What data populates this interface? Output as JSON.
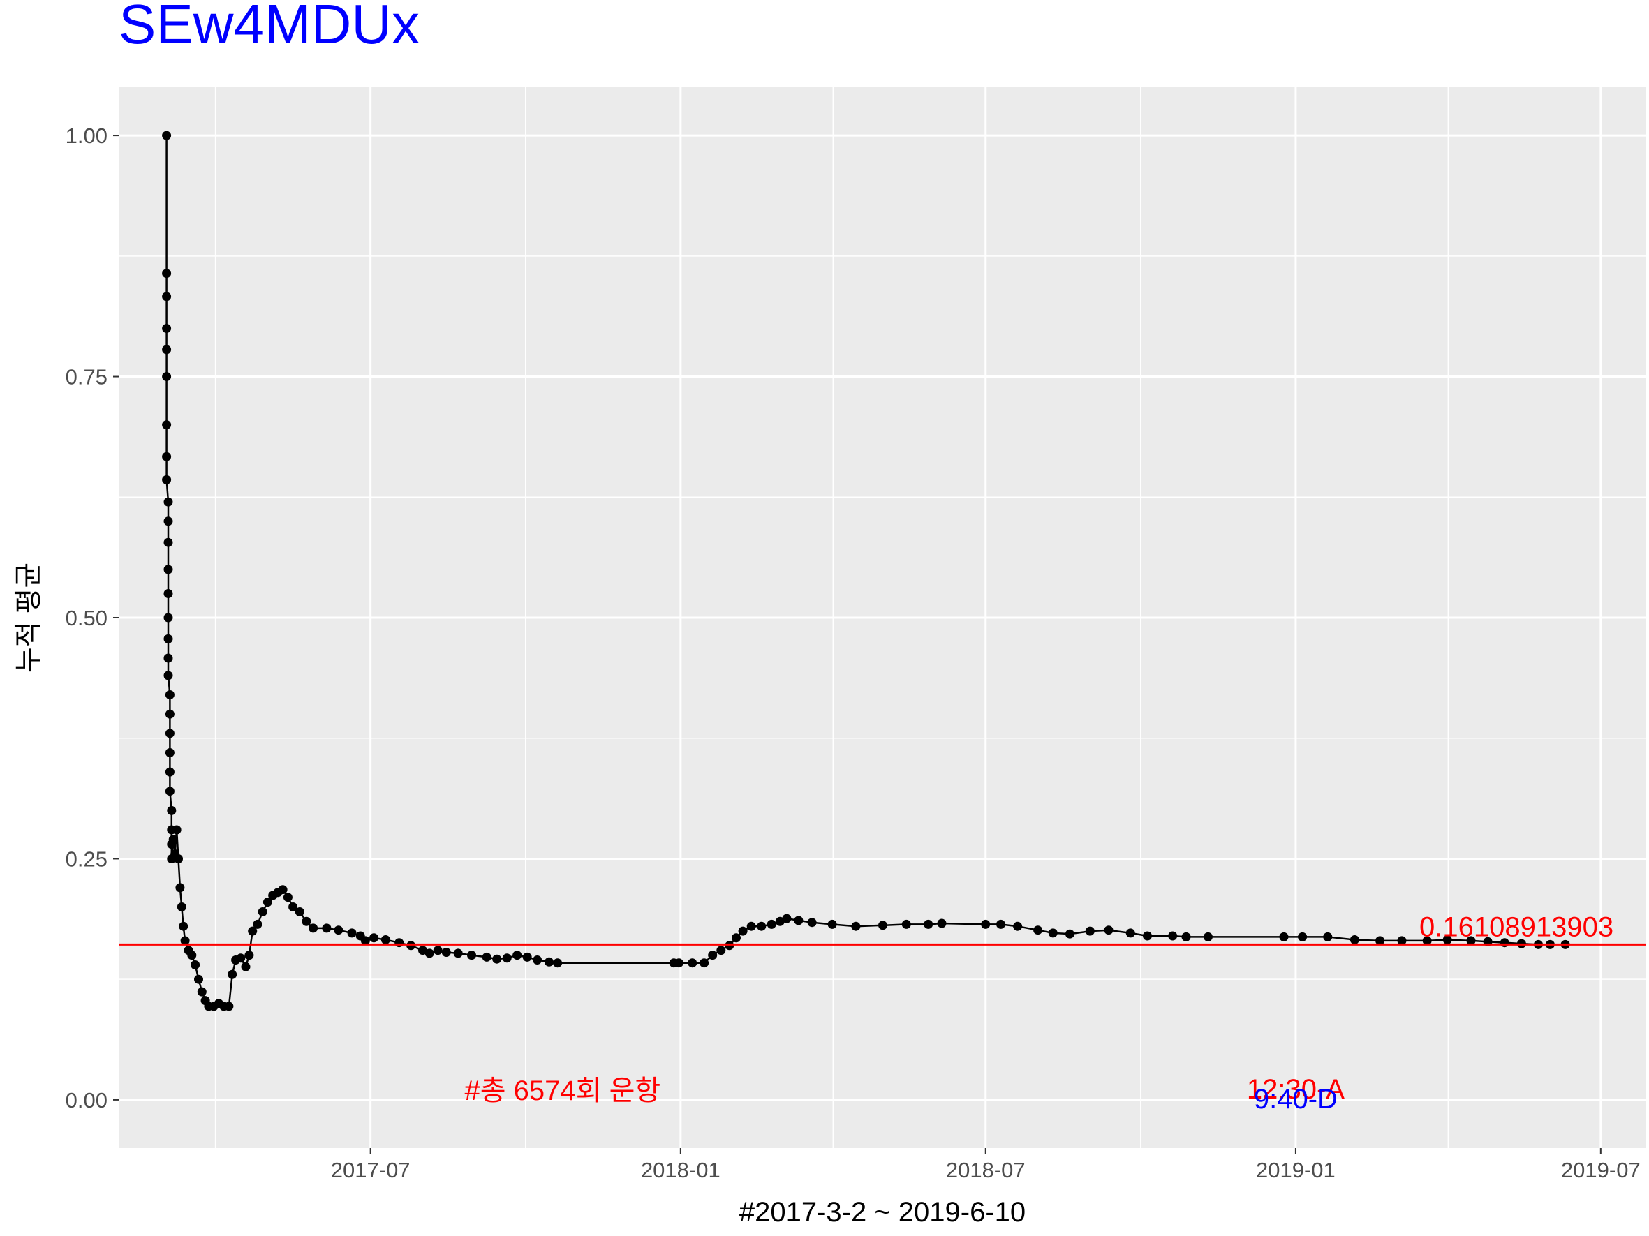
{
  "chart_data": {
    "type": "line",
    "title": "SEw4MDUx",
    "xlabel": "#2017-3-2 ~ 2019-6-10",
    "ylabel": "누적 평균",
    "x_range": [
      "2017-02-02",
      "2019-07-28"
    ],
    "ylim": [
      -0.05,
      1.05
    ],
    "y_ticks": [
      0.0,
      0.25,
      0.5,
      0.75,
      1.0
    ],
    "y_tick_labels": [
      "0.00",
      "0.25",
      "0.50",
      "0.75",
      "1.00"
    ],
    "x_ticks": [
      "2017-07-01",
      "2018-01-01",
      "2018-07-01",
      "2019-01-01",
      "2019-07-01"
    ],
    "x_tick_labels": [
      "2017-07",
      "2018-01",
      "2018-07",
      "2019-01",
      "2019-07"
    ],
    "grid": true,
    "colors": {
      "panel": "#ebebeb",
      "grid": "#ffffff",
      "series": "#000000",
      "reference": "#ff0000",
      "title": "#0000ff",
      "annotation_red": "#ff0000",
      "annotation_blue": "#0000ff"
    },
    "series": [
      {
        "points": [
          [
            "2017-03-02",
            1.0
          ],
          [
            "2017-03-02",
            0.857
          ],
          [
            "2017-03-02",
            0.833
          ],
          [
            "2017-03-02",
            0.8
          ],
          [
            "2017-03-02",
            0.778
          ],
          [
            "2017-03-02",
            0.75
          ],
          [
            "2017-03-02",
            0.7
          ],
          [
            "2017-03-02",
            0.667
          ],
          [
            "2017-03-02",
            0.643
          ],
          [
            "2017-03-03",
            0.62
          ],
          [
            "2017-03-03",
            0.6
          ],
          [
            "2017-03-03",
            0.578
          ],
          [
            "2017-03-03",
            0.55
          ],
          [
            "2017-03-03",
            0.525
          ],
          [
            "2017-03-03",
            0.5
          ],
          [
            "2017-03-03",
            0.478
          ],
          [
            "2017-03-03",
            0.458
          ],
          [
            "2017-03-03",
            0.44
          ],
          [
            "2017-03-04",
            0.42
          ],
          [
            "2017-03-04",
            0.4
          ],
          [
            "2017-03-04",
            0.38
          ],
          [
            "2017-03-04",
            0.36
          ],
          [
            "2017-03-04",
            0.34
          ],
          [
            "2017-03-04",
            0.32
          ],
          [
            "2017-03-05",
            0.3
          ],
          [
            "2017-03-05",
            0.28
          ],
          [
            "2017-03-05",
            0.265
          ],
          [
            "2017-03-05",
            0.25
          ],
          [
            "2017-03-06",
            0.27
          ],
          [
            "2017-03-07",
            0.255
          ],
          [
            "2017-03-08",
            0.28
          ],
          [
            "2017-03-09",
            0.25
          ],
          [
            "2017-03-10",
            0.22
          ],
          [
            "2017-03-11",
            0.2
          ],
          [
            "2017-03-12",
            0.18
          ],
          [
            "2017-03-13",
            0.165
          ],
          [
            "2017-03-15",
            0.155
          ],
          [
            "2017-03-17",
            0.15
          ],
          [
            "2017-03-19",
            0.14
          ],
          [
            "2017-03-21",
            0.125
          ],
          [
            "2017-03-23",
            0.112
          ],
          [
            "2017-03-25",
            0.103
          ],
          [
            "2017-03-27",
            0.097
          ],
          [
            "2017-03-30",
            0.097
          ],
          [
            "2017-04-02",
            0.1
          ],
          [
            "2017-04-05",
            0.097
          ],
          [
            "2017-04-08",
            0.097
          ],
          [
            "2017-04-10",
            0.13
          ],
          [
            "2017-04-12",
            0.145
          ],
          [
            "2017-04-15",
            0.147
          ],
          [
            "2017-04-18",
            0.138
          ],
          [
            "2017-04-20",
            0.15
          ],
          [
            "2017-04-22",
            0.175
          ],
          [
            "2017-04-25",
            0.182
          ],
          [
            "2017-04-28",
            0.195
          ],
          [
            "2017-05-01",
            0.205
          ],
          [
            "2017-05-04",
            0.212
          ],
          [
            "2017-05-07",
            0.215
          ],
          [
            "2017-05-10",
            0.218
          ],
          [
            "2017-05-13",
            0.21
          ],
          [
            "2017-05-16",
            0.2
          ],
          [
            "2017-05-20",
            0.195
          ],
          [
            "2017-05-24",
            0.185
          ],
          [
            "2017-05-28",
            0.178
          ],
          [
            "2017-06-05",
            0.178
          ],
          [
            "2017-06-12",
            0.176
          ],
          [
            "2017-06-20",
            0.173
          ],
          [
            "2017-06-25",
            0.17
          ],
          [
            "2017-06-28",
            0.165
          ],
          [
            "2017-07-03",
            0.168
          ],
          [
            "2017-07-10",
            0.166
          ],
          [
            "2017-07-18",
            0.163
          ],
          [
            "2017-07-25",
            0.16
          ],
          [
            "2017-08-01",
            0.155
          ],
          [
            "2017-08-05",
            0.152
          ],
          [
            "2017-08-10",
            0.155
          ],
          [
            "2017-08-15",
            0.153
          ],
          [
            "2017-08-22",
            0.152
          ],
          [
            "2017-08-30",
            0.15
          ],
          [
            "2017-09-08",
            0.148
          ],
          [
            "2017-09-14",
            0.146
          ],
          [
            "2017-09-20",
            0.147
          ],
          [
            "2017-09-26",
            0.15
          ],
          [
            "2017-10-02",
            0.148
          ],
          [
            "2017-10-08",
            0.145
          ],
          [
            "2017-10-15",
            0.143
          ],
          [
            "2017-10-20",
            0.142
          ],
          [
            "2017-12-28",
            0.142
          ],
          [
            "2017-12-31",
            0.142
          ],
          [
            "2018-01-08",
            0.142
          ],
          [
            "2018-01-15",
            0.142
          ],
          [
            "2018-01-20",
            0.15
          ],
          [
            "2018-01-25",
            0.155
          ],
          [
            "2018-01-30",
            0.16
          ],
          [
            "2018-02-03",
            0.168
          ],
          [
            "2018-02-07",
            0.175
          ],
          [
            "2018-02-12",
            0.18
          ],
          [
            "2018-02-18",
            0.18
          ],
          [
            "2018-02-24",
            0.182
          ],
          [
            "2018-03-01",
            0.185
          ],
          [
            "2018-03-05",
            0.188
          ],
          [
            "2018-03-12",
            0.186
          ],
          [
            "2018-03-20",
            0.184
          ],
          [
            "2018-04-01",
            0.182
          ],
          [
            "2018-04-15",
            0.18
          ],
          [
            "2018-05-01",
            0.181
          ],
          [
            "2018-05-15",
            0.182
          ],
          [
            "2018-05-28",
            0.182
          ],
          [
            "2018-06-05",
            0.183
          ],
          [
            "2018-07-01",
            0.182
          ],
          [
            "2018-07-10",
            0.182
          ],
          [
            "2018-07-20",
            0.18
          ],
          [
            "2018-08-01",
            0.176
          ],
          [
            "2018-08-10",
            0.173
          ],
          [
            "2018-08-20",
            0.172
          ],
          [
            "2018-09-01",
            0.175
          ],
          [
            "2018-09-12",
            0.176
          ],
          [
            "2018-09-25",
            0.173
          ],
          [
            "2018-10-05",
            0.17
          ],
          [
            "2018-10-20",
            0.17
          ],
          [
            "2018-10-28",
            0.169
          ],
          [
            "2018-11-10",
            0.169
          ],
          [
            "2018-12-25",
            0.169
          ],
          [
            "2019-01-05",
            0.169
          ],
          [
            "2019-01-20",
            0.169
          ],
          [
            "2019-02-05",
            0.166
          ],
          [
            "2019-02-20",
            0.165
          ],
          [
            "2019-03-05",
            0.165
          ],
          [
            "2019-03-20",
            0.165
          ],
          [
            "2019-04-01",
            0.166
          ],
          [
            "2019-04-15",
            0.165
          ],
          [
            "2019-04-25",
            0.164
          ],
          [
            "2019-05-05",
            0.163
          ],
          [
            "2019-05-15",
            0.162
          ],
          [
            "2019-05-25",
            0.161
          ],
          [
            "2019-06-01",
            0.161
          ],
          [
            "2019-06-10",
            0.161
          ]
        ]
      }
    ],
    "reference_line": {
      "y": 0.16108913903,
      "label": "0.16108913903"
    },
    "annotations": [
      {
        "text": "#총 6574회 운항",
        "x": "2017-10-23",
        "y": 0.0,
        "color": "#ff0000"
      },
      {
        "text": "12:30-A",
        "x": "2019-01-01",
        "y": 0.0,
        "color": "#ff0000"
      },
      {
        "text": "9:40-D",
        "x": "2019-01-01",
        "y": 0.0,
        "color": "#0000ff"
      }
    ]
  }
}
